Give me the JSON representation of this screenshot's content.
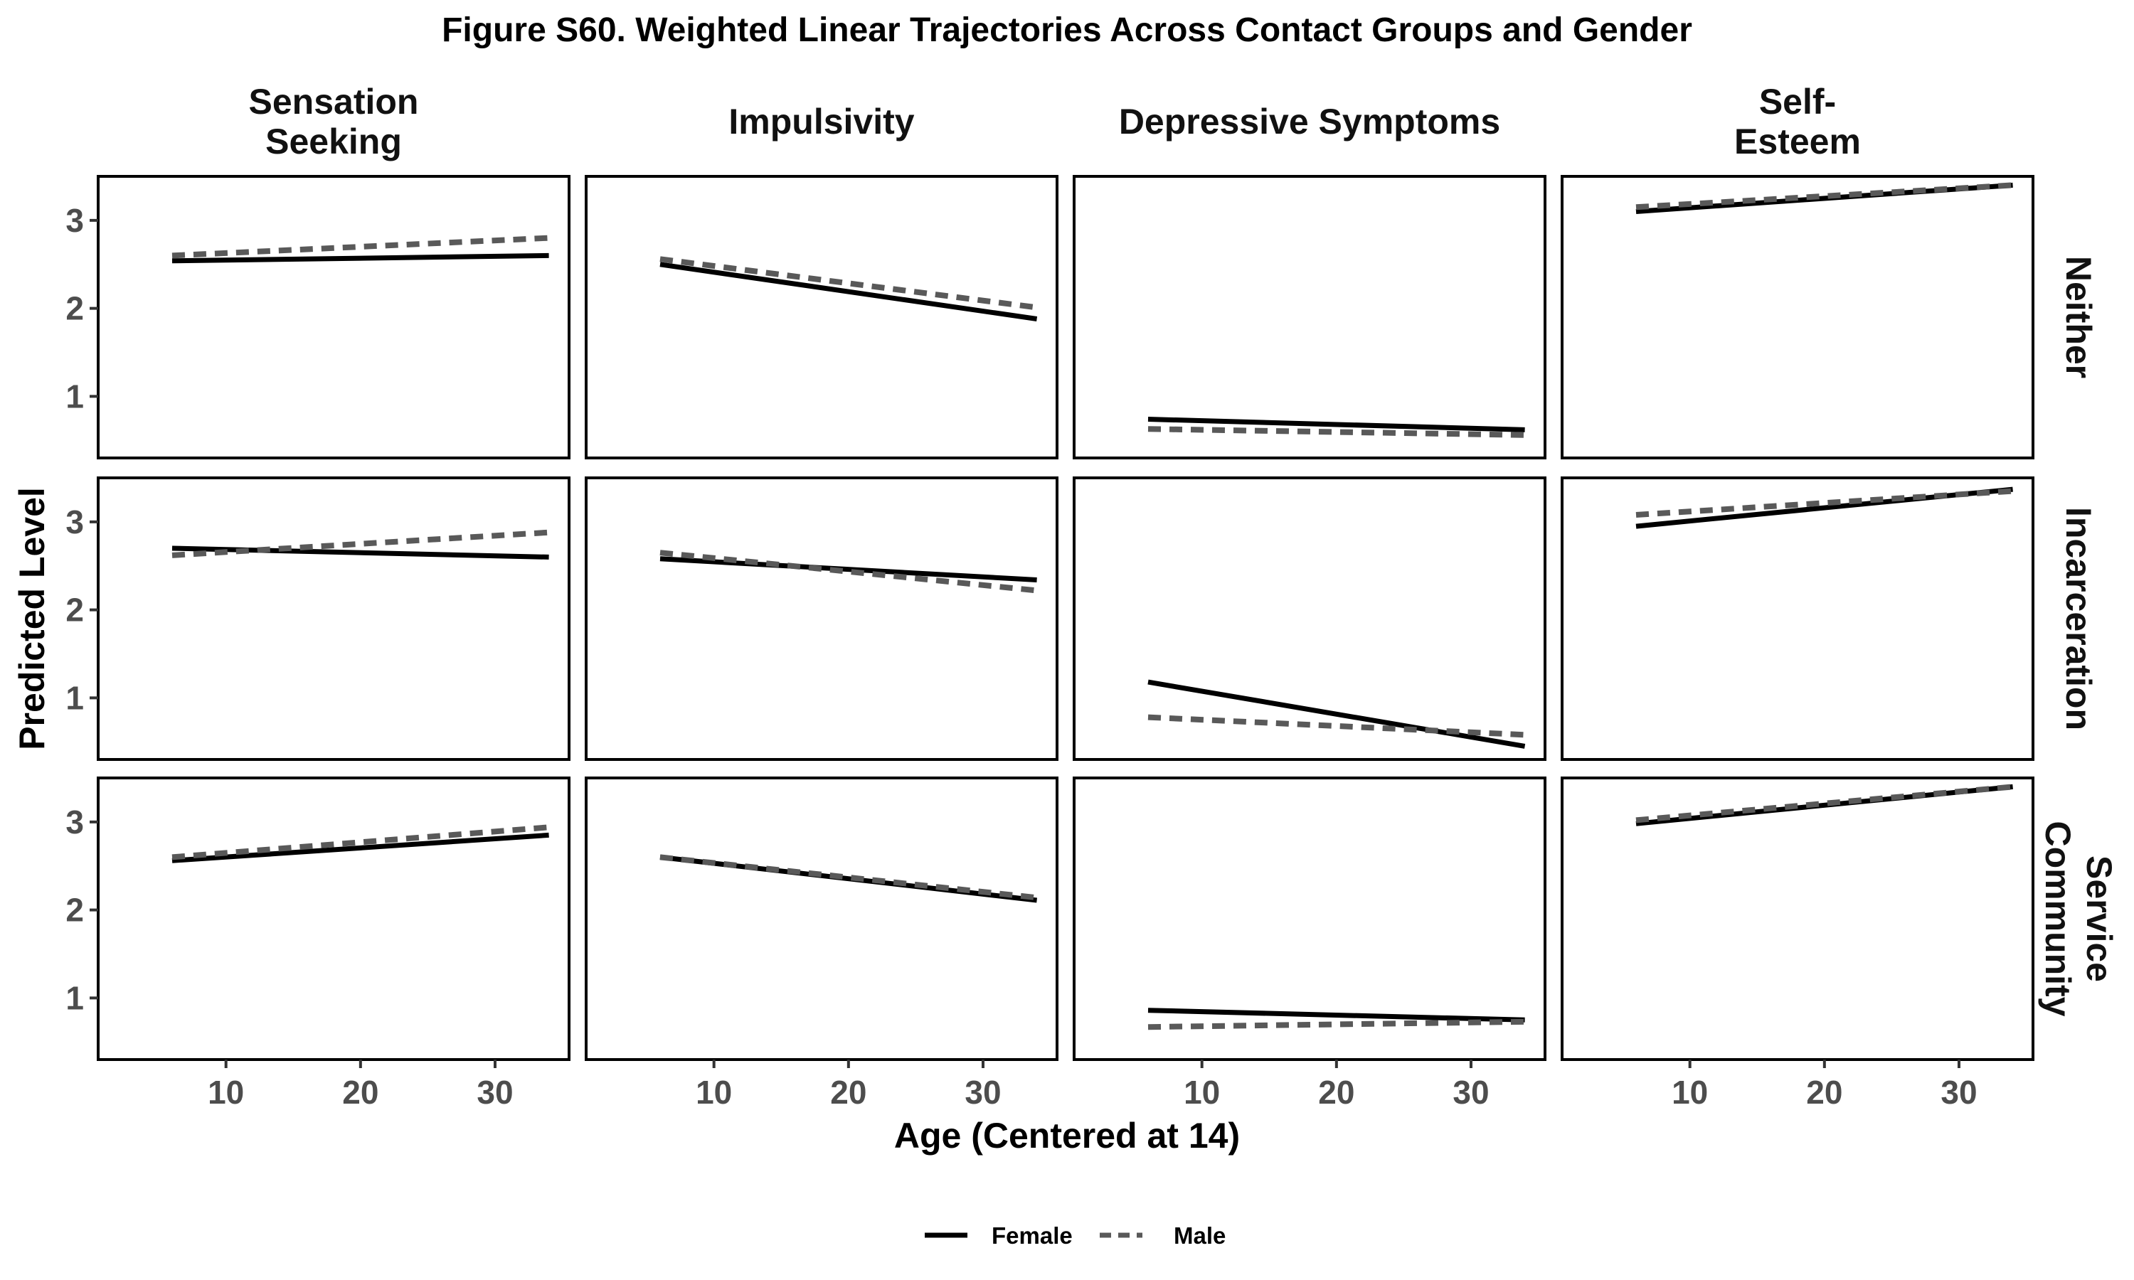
{
  "chart_data": {
    "type": "line",
    "title": "Figure S60. Weighted Linear Trajectories Across Contact Groups and Gender",
    "xlabel": "Age (Centered at 14)",
    "ylabel": "Predicted Level",
    "xlim": [
      0.5,
      35.5
    ],
    "ylim": [
      0.3,
      3.5
    ],
    "x_ticks": [
      10,
      20,
      30
    ],
    "y_ticks": [
      1,
      2,
      3
    ],
    "columns": [
      "Sensation\nSeeking",
      "Impulsivity",
      "Depressive Symptoms",
      "Self-\nEsteem"
    ],
    "rows": [
      "Neither",
      "Incarceration",
      "Community\nService"
    ],
    "legend": {
      "placement": "bottom",
      "items": [
        {
          "name": "Female",
          "style": "solid",
          "color": "#000000"
        },
        {
          "name": "Male",
          "style": "dashed",
          "color": "#595959"
        }
      ]
    },
    "panels": [
      {
        "row": "Neither",
        "column": "Sensation Seeking",
        "series": [
          {
            "name": "Female",
            "x": [
              6,
              34
            ],
            "y": [
              2.54,
              2.6
            ]
          },
          {
            "name": "Male",
            "x": [
              6,
              34
            ],
            "y": [
              2.6,
              2.8
            ]
          }
        ]
      },
      {
        "row": "Neither",
        "column": "Impulsivity",
        "series": [
          {
            "name": "Female",
            "x": [
              6,
              34
            ],
            "y": [
              2.5,
              1.88
            ]
          },
          {
            "name": "Male",
            "x": [
              6,
              34
            ],
            "y": [
              2.56,
              2.01
            ]
          }
        ]
      },
      {
        "row": "Neither",
        "column": "Depressive Symptoms",
        "series": [
          {
            "name": "Female",
            "x": [
              6,
              34
            ],
            "y": [
              0.74,
              0.62
            ]
          },
          {
            "name": "Male",
            "x": [
              6,
              34
            ],
            "y": [
              0.63,
              0.56
            ]
          }
        ]
      },
      {
        "row": "Neither",
        "column": "Self-Esteem",
        "series": [
          {
            "name": "Female",
            "x": [
              6,
              34
            ],
            "y": [
              3.1,
              3.4
            ]
          },
          {
            "name": "Male",
            "x": [
              6,
              34
            ],
            "y": [
              3.15,
              3.4
            ]
          }
        ]
      },
      {
        "row": "Incarceration",
        "column": "Sensation Seeking",
        "series": [
          {
            "name": "Female",
            "x": [
              6,
              34
            ],
            "y": [
              2.7,
              2.6
            ]
          },
          {
            "name": "Male",
            "x": [
              6,
              34
            ],
            "y": [
              2.62,
              2.88
            ]
          }
        ]
      },
      {
        "row": "Incarceration",
        "column": "Impulsivity",
        "series": [
          {
            "name": "Female",
            "x": [
              6,
              34
            ],
            "y": [
              2.58,
              2.34
            ]
          },
          {
            "name": "Male",
            "x": [
              6,
              34
            ],
            "y": [
              2.65,
              2.22
            ]
          }
        ]
      },
      {
        "row": "Incarceration",
        "column": "Depressive Symptoms",
        "series": [
          {
            "name": "Female",
            "x": [
              6,
              34
            ],
            "y": [
              1.18,
              0.45
            ]
          },
          {
            "name": "Male",
            "x": [
              6,
              34
            ],
            "y": [
              0.78,
              0.58
            ]
          }
        ]
      },
      {
        "row": "Incarceration",
        "column": "Self-Esteem",
        "series": [
          {
            "name": "Female",
            "x": [
              6,
              34
            ],
            "y": [
              2.95,
              3.37
            ]
          },
          {
            "name": "Male",
            "x": [
              6,
              34
            ],
            "y": [
              3.08,
              3.35
            ]
          }
        ]
      },
      {
        "row": "Community Service",
        "column": "Sensation Seeking",
        "series": [
          {
            "name": "Female",
            "x": [
              6,
              34
            ],
            "y": [
              2.56,
              2.85
            ]
          },
          {
            "name": "Male",
            "x": [
              6,
              34
            ],
            "y": [
              2.6,
              2.94
            ]
          }
        ]
      },
      {
        "row": "Community Service",
        "column": "Impulsivity",
        "series": [
          {
            "name": "Female",
            "x": [
              6,
              34
            ],
            "y": [
              2.6,
              2.11
            ]
          },
          {
            "name": "Male",
            "x": [
              6,
              34
            ],
            "y": [
              2.6,
              2.14
            ]
          }
        ]
      },
      {
        "row": "Community Service",
        "column": "Depressive Symptoms",
        "series": [
          {
            "name": "Female",
            "x": [
              6,
              34
            ],
            "y": [
              0.86,
              0.75
            ]
          },
          {
            "name": "Male",
            "x": [
              6,
              34
            ],
            "y": [
              0.67,
              0.73
            ]
          }
        ]
      },
      {
        "row": "Community Service",
        "column": "Self-Esteem",
        "series": [
          {
            "name": "Female",
            "x": [
              6,
              34
            ],
            "y": [
              2.98,
              3.4
            ]
          },
          {
            "name": "Male",
            "x": [
              6,
              34
            ],
            "y": [
              3.02,
              3.4
            ]
          }
        ]
      }
    ]
  }
}
